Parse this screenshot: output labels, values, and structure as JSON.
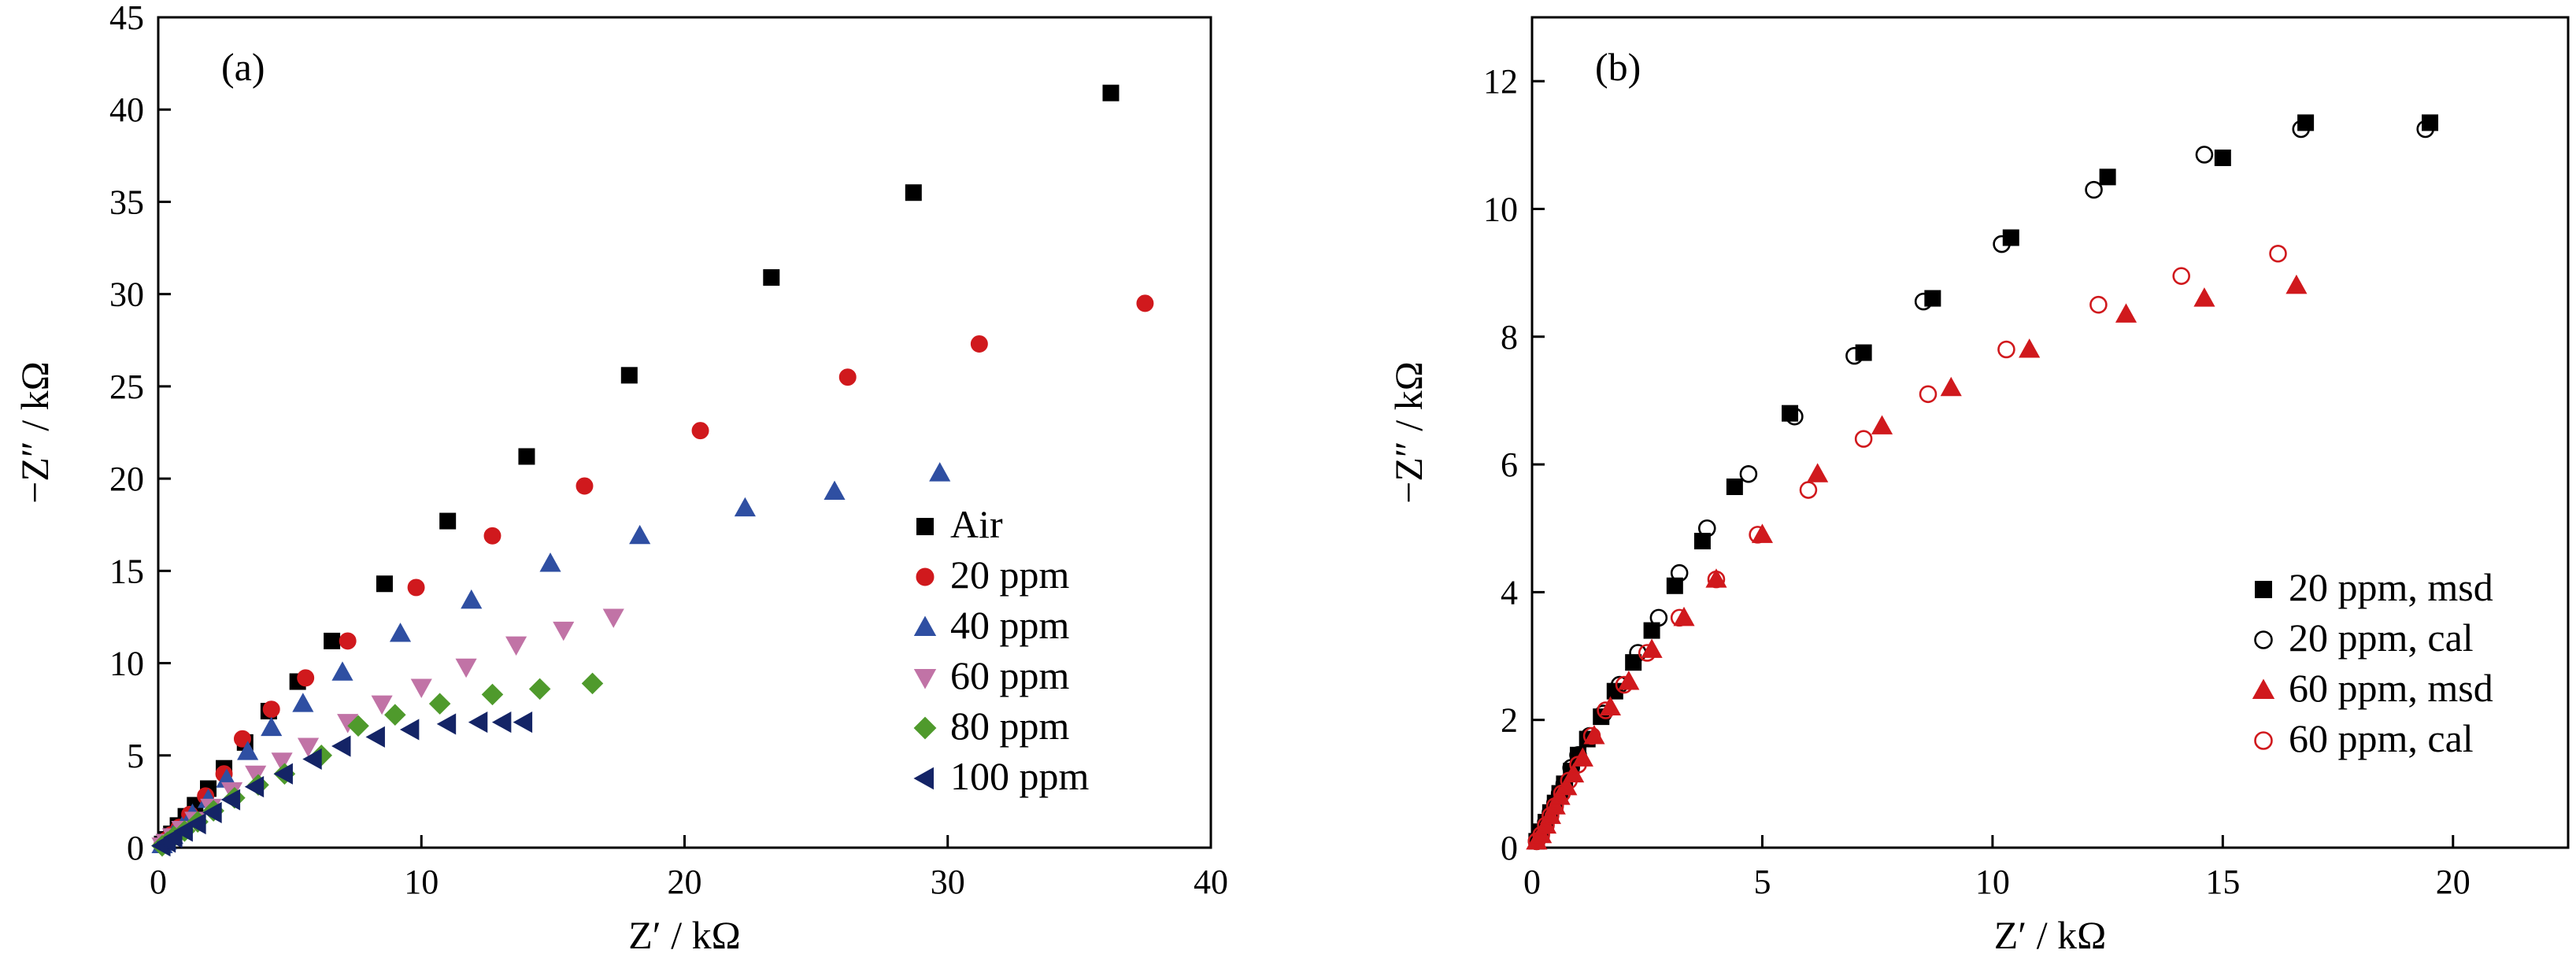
{
  "chart_data": [
    {
      "type": "scatter",
      "panel_label": "(a)",
      "xlabel": "Z′ / kΩ",
      "ylabel": "−Z″ / kΩ",
      "xlim": [
        0,
        40
      ],
      "ylim": [
        0,
        45
      ],
      "xticks": [
        0,
        10,
        20,
        30,
        40
      ],
      "yticks": [
        0,
        5,
        10,
        15,
        20,
        25,
        30,
        35,
        40,
        45
      ],
      "legend_position": "bottom-right",
      "series": [
        {
          "name": "Air",
          "marker": "square-filled",
          "color": "#000000",
          "points": [
            [
              0.15,
              0.2
            ],
            [
              0.3,
              0.45
            ],
            [
              0.5,
              0.75
            ],
            [
              0.75,
              1.2
            ],
            [
              1.05,
              1.7
            ],
            [
              1.4,
              2.3
            ],
            [
              1.9,
              3.2
            ],
            [
              2.5,
              4.3
            ],
            [
              3.3,
              5.7
            ],
            [
              4.2,
              7.4
            ],
            [
              5.3,
              9.0
            ],
            [
              6.6,
              11.2
            ],
            [
              8.6,
              14.3
            ],
            [
              11.0,
              17.7
            ],
            [
              14.0,
              21.2
            ],
            [
              17.9,
              25.6
            ],
            [
              23.3,
              30.9
            ],
            [
              28.7,
              35.5
            ],
            [
              36.2,
              40.9
            ]
          ]
        },
        {
          "name": "20 ppm",
          "marker": "circle-filled",
          "color": "#d0191d",
          "points": [
            [
              0.15,
              0.15
            ],
            [
              0.3,
              0.4
            ],
            [
              0.5,
              0.7
            ],
            [
              0.8,
              1.1
            ],
            [
              1.2,
              1.8
            ],
            [
              1.8,
              2.8
            ],
            [
              2.5,
              4.0
            ],
            [
              3.2,
              5.9
            ],
            [
              4.3,
              7.5
            ],
            [
              5.6,
              9.2
            ],
            [
              7.2,
              11.2
            ],
            [
              9.8,
              14.1
            ],
            [
              12.7,
              16.9
            ],
            [
              16.2,
              19.6
            ],
            [
              20.6,
              22.6
            ],
            [
              26.2,
              25.5
            ],
            [
              31.2,
              27.3
            ],
            [
              37.5,
              29.5
            ]
          ]
        },
        {
          "name": "40 ppm",
          "marker": "triangle-up-filled",
          "color": "#2f4fa2",
          "points": [
            [
              0.15,
              0.15
            ],
            [
              0.3,
              0.35
            ],
            [
              0.55,
              0.65
            ],
            [
              0.9,
              1.1
            ],
            [
              1.3,
              1.8
            ],
            [
              1.9,
              2.6
            ],
            [
              2.6,
              3.7
            ],
            [
              3.4,
              5.2
            ],
            [
              4.3,
              6.5
            ],
            [
              5.5,
              7.8
            ],
            [
              7.0,
              9.5
            ],
            [
              9.2,
              11.6
            ],
            [
              11.9,
              13.4
            ],
            [
              14.9,
              15.4
            ],
            [
              18.3,
              16.9
            ],
            [
              22.3,
              18.4
            ],
            [
              25.7,
              19.3
            ],
            [
              29.7,
              20.3
            ]
          ]
        },
        {
          "name": "60 ppm",
          "marker": "triangle-down-filled",
          "color": "#c173a6",
          "points": [
            [
              0.15,
              0.1
            ],
            [
              0.3,
              0.3
            ],
            [
              0.55,
              0.6
            ],
            [
              0.9,
              1.0
            ],
            [
              1.4,
              1.5
            ],
            [
              2.0,
              2.2
            ],
            [
              2.8,
              3.1
            ],
            [
              3.7,
              4.0
            ],
            [
              4.7,
              4.7
            ],
            [
              5.7,
              5.5
            ],
            [
              7.2,
              6.8
            ],
            [
              8.5,
              7.8
            ],
            [
              10.0,
              8.7
            ],
            [
              11.7,
              9.8
            ],
            [
              13.6,
              11.0
            ],
            [
              15.4,
              11.8
            ],
            [
              17.3,
              12.5
            ]
          ]
        },
        {
          "name": "80 ppm",
          "marker": "diamond-filled",
          "color": "#4f9a2c",
          "points": [
            [
              0.15,
              0.1
            ],
            [
              0.35,
              0.3
            ],
            [
              0.6,
              0.6
            ],
            [
              1.0,
              0.9
            ],
            [
              1.5,
              1.4
            ],
            [
              2.1,
              2.0
            ],
            [
              2.9,
              2.7
            ],
            [
              3.8,
              3.4
            ],
            [
              4.8,
              4.0
            ],
            [
              6.2,
              5.0
            ],
            [
              7.6,
              6.6
            ],
            [
              9.0,
              7.2
            ],
            [
              10.7,
              7.8
            ],
            [
              12.7,
              8.3
            ],
            [
              14.5,
              8.6
            ],
            [
              16.5,
              8.9
            ]
          ]
        },
        {
          "name": "100 ppm",
          "marker": "triangle-left-filled",
          "color": "#142466",
          "points": [
            [
              0.15,
              0.1
            ],
            [
              0.35,
              0.3
            ],
            [
              0.6,
              0.55
            ],
            [
              1.0,
              0.9
            ],
            [
              1.5,
              1.3
            ],
            [
              2.1,
              1.9
            ],
            [
              2.8,
              2.6
            ],
            [
              3.7,
              3.3
            ],
            [
              4.8,
              4.0
            ],
            [
              5.9,
              4.8
            ],
            [
              7.0,
              5.5
            ],
            [
              8.3,
              6.0
            ],
            [
              9.6,
              6.4
            ],
            [
              11.0,
              6.7
            ],
            [
              12.2,
              6.8
            ],
            [
              13.1,
              6.8
            ],
            [
              13.9,
              6.8
            ]
          ]
        }
      ]
    },
    {
      "type": "scatter",
      "panel_label": "(b)",
      "xlabel": "Z′ / kΩ",
      "ylabel": "−Z″ / kΩ",
      "xlim": [
        0,
        22.5
      ],
      "ylim": [
        0,
        13
      ],
      "xticks": [
        0,
        5,
        10,
        15,
        20
      ],
      "yticks": [
        0,
        2,
        4,
        6,
        8,
        10,
        12
      ],
      "legend_position": "bottom-right",
      "series": [
        {
          "name": "20 ppm, msd",
          "marker": "square-filled",
          "color": "#000000",
          "points": [
            [
              0.1,
              0.1
            ],
            [
              0.2,
              0.25
            ],
            [
              0.3,
              0.4
            ],
            [
              0.4,
              0.55
            ],
            [
              0.5,
              0.7
            ],
            [
              0.6,
              0.85
            ],
            [
              0.7,
              1.0
            ],
            [
              0.85,
              1.2
            ],
            [
              1.0,
              1.45
            ],
            [
              1.2,
              1.7
            ],
            [
              1.5,
              2.05
            ],
            [
              1.8,
              2.45
            ],
            [
              2.2,
              2.9
            ],
            [
              2.6,
              3.4
            ],
            [
              3.1,
              4.1
            ],
            [
              3.7,
              4.8
            ],
            [
              4.4,
              5.65
            ],
            [
              5.6,
              6.8
            ],
            [
              7.2,
              7.75
            ],
            [
              8.7,
              8.6
            ],
            [
              10.4,
              9.55
            ],
            [
              12.5,
              10.5
            ],
            [
              15.0,
              10.8
            ],
            [
              16.8,
              11.35
            ],
            [
              19.5,
              11.35
            ]
          ]
        },
        {
          "name": "20 ppm, cal",
          "marker": "circle-open",
          "color": "#000000",
          "points": [
            [
              0.1,
              0.1
            ],
            [
              0.2,
              0.25
            ],
            [
              0.3,
              0.4
            ],
            [
              0.4,
              0.55
            ],
            [
              0.5,
              0.7
            ],
            [
              0.6,
              0.85
            ],
            [
              0.7,
              1.0
            ],
            [
              0.85,
              1.25
            ],
            [
              1.0,
              1.45
            ],
            [
              1.25,
              1.75
            ],
            [
              1.55,
              2.1
            ],
            [
              1.9,
              2.55
            ],
            [
              2.3,
              3.05
            ],
            [
              2.75,
              3.6
            ],
            [
              3.2,
              4.3
            ],
            [
              3.8,
              5.0
            ],
            [
              4.7,
              5.85
            ],
            [
              5.7,
              6.75
            ],
            [
              7.0,
              7.7
            ],
            [
              8.5,
              8.55
            ],
            [
              10.2,
              9.45
            ],
            [
              12.2,
              10.3
            ],
            [
              14.6,
              10.85
            ],
            [
              16.7,
              11.25
            ],
            [
              19.4,
              11.25
            ]
          ]
        },
        {
          "name": "60 ppm, msd",
          "marker": "triangle-up-filled",
          "color": "#d0191d",
          "points": [
            [
              0.1,
              0.1
            ],
            [
              0.2,
              0.2
            ],
            [
              0.3,
              0.35
            ],
            [
              0.4,
              0.5
            ],
            [
              0.5,
              0.65
            ],
            [
              0.6,
              0.8
            ],
            [
              0.75,
              0.95
            ],
            [
              0.9,
              1.15
            ],
            [
              1.1,
              1.4
            ],
            [
              1.35,
              1.75
            ],
            [
              1.7,
              2.2
            ],
            [
              2.1,
              2.6
            ],
            [
              2.6,
              3.1
            ],
            [
              3.3,
              3.6
            ],
            [
              4.0,
              4.2
            ],
            [
              5.0,
              4.9
            ],
            [
              6.2,
              5.85
            ],
            [
              7.6,
              6.6
            ],
            [
              9.1,
              7.2
            ],
            [
              10.8,
              7.8
            ],
            [
              12.9,
              8.35
            ],
            [
              14.6,
              8.6
            ],
            [
              16.6,
              8.8
            ]
          ]
        },
        {
          "name": "60 ppm, cal",
          "marker": "circle-open",
          "color": "#d0191d",
          "points": [
            [
              0.1,
              0.1
            ],
            [
              0.2,
              0.2
            ],
            [
              0.3,
              0.35
            ],
            [
              0.4,
              0.5
            ],
            [
              0.5,
              0.65
            ],
            [
              0.65,
              0.85
            ],
            [
              0.8,
              1.05
            ],
            [
              1.0,
              1.3
            ],
            [
              1.3,
              1.75
            ],
            [
              1.6,
              2.15
            ],
            [
              2.0,
              2.55
            ],
            [
              2.5,
              3.05
            ],
            [
              3.2,
              3.6
            ],
            [
              4.0,
              4.2
            ],
            [
              4.9,
              4.9
            ],
            [
              6.0,
              5.6
            ],
            [
              7.2,
              6.4
            ],
            [
              8.6,
              7.1
            ],
            [
              10.3,
              7.8
            ],
            [
              12.3,
              8.5
            ],
            [
              14.1,
              8.95
            ],
            [
              16.2,
              9.3
            ]
          ]
        }
      ]
    }
  ]
}
